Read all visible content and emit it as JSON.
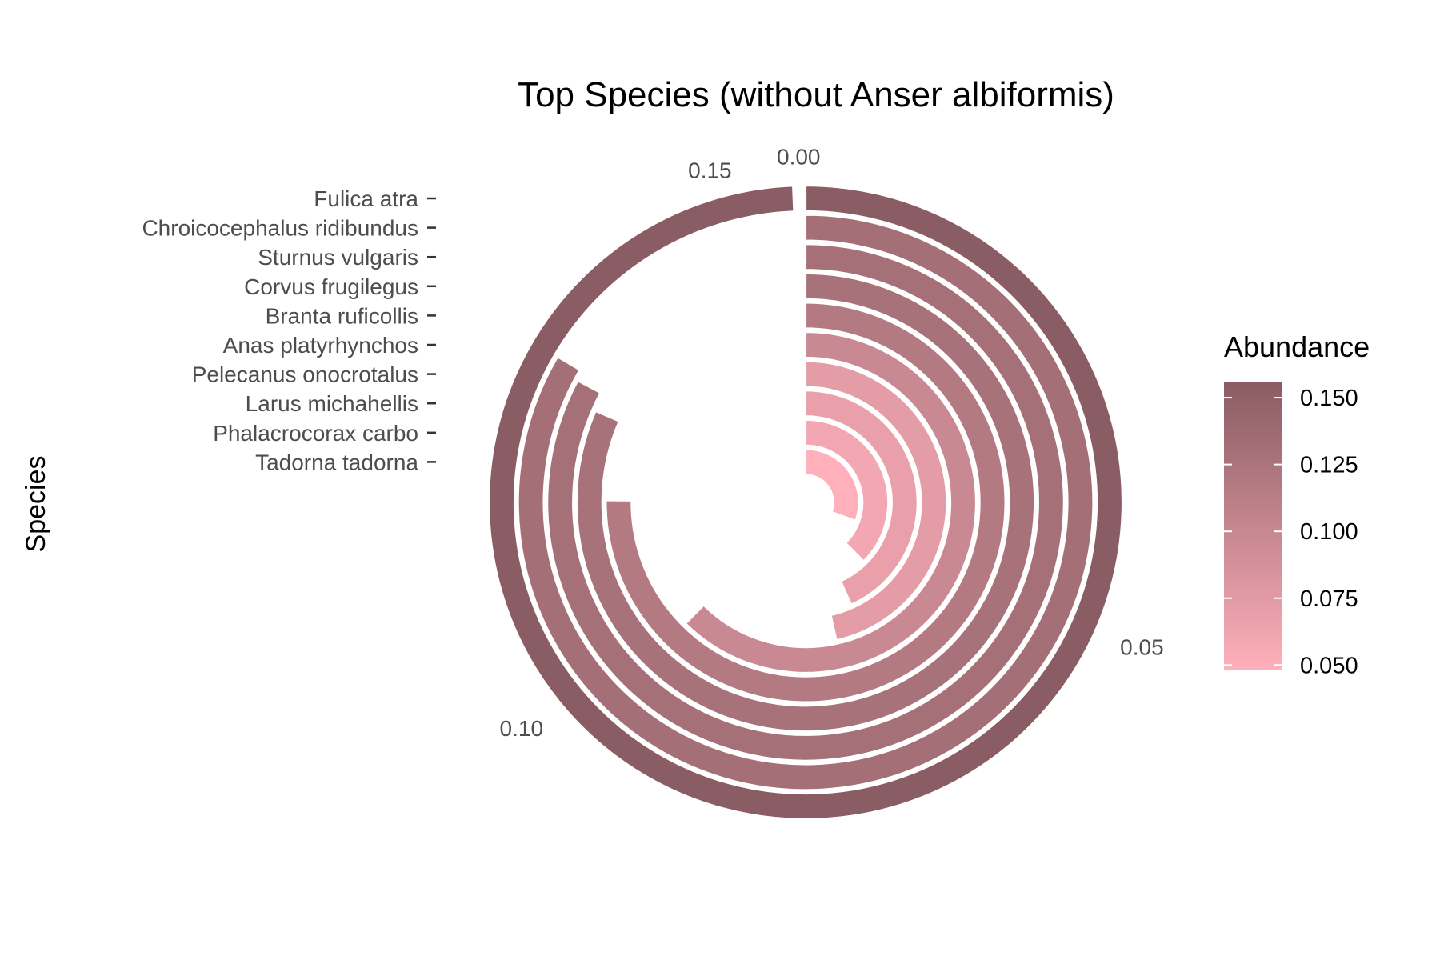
{
  "chart_data": {
    "type": "bar",
    "coord": "polar",
    "title": "Top Species (without Anser albiformis)",
    "xlabel": "",
    "ylabel": "Species",
    "categories": [
      "Fulica atra",
      "Chroicocephalus ridibundus",
      "Sturnus vulgaris",
      "Corvus frugilegus",
      "Branta ruficollis",
      "Anas platyrhynchos",
      "Pelecanus onocrotalus",
      "Larus michahellis",
      "Phalacrocorax carbo",
      "Tadorna tadorna"
    ],
    "values": [
      0.156,
      0.131,
      0.13,
      0.128,
      0.118,
      0.098,
      0.073,
      0.068,
      0.059,
      0.048
    ],
    "value_axis": {
      "range": [
        0,
        0.157
      ],
      "tick_values": [
        0.0,
        0.05,
        0.1,
        0.15
      ],
      "tick_labels": [
        "0.00",
        "0.05",
        "0.10",
        "0.15"
      ]
    },
    "legend": {
      "title": "Abundance",
      "placement": "right",
      "tick_values": [
        0.15,
        0.125,
        0.1,
        0.075,
        0.05
      ],
      "tick_labels": [
        "0.150",
        "0.125",
        "0.100",
        "0.075",
        "0.050"
      ],
      "range": [
        0.048,
        0.156
      ],
      "color_low": "#ffb0bb",
      "color_high": "#8a5c63"
    },
    "grid": false,
    "colors": {
      "low": "#ffb0bb",
      "high": "#8a5c63",
      "bar_outline": "#ffffff"
    }
  }
}
